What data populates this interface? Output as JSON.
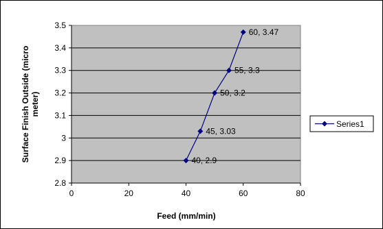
{
  "chart_data": {
    "type": "line",
    "title": "",
    "xlabel": "Feed (mm/min)",
    "ylabel_lines": [
      "Surface Finish Outside (micro",
      "meter)"
    ],
    "xlim": [
      0,
      80
    ],
    "ylim": [
      2.8,
      3.5
    ],
    "x_ticks": [
      "0",
      "20",
      "40",
      "60",
      "80"
    ],
    "y_ticks": [
      "2.8",
      "2.9",
      "3",
      "3.1",
      "3.2",
      "3.3",
      "3.4",
      "3.5"
    ],
    "grid": "horizontal",
    "legend_position": "right",
    "plot_background": "#c0c0c0",
    "series": [
      {
        "name": "Series1",
        "color": "#000080",
        "marker": "diamond",
        "x": [
          40,
          45,
          50,
          55,
          60
        ],
        "y": [
          2.9,
          3.03,
          3.2,
          3.3,
          3.47
        ],
        "labels": [
          "40, 2.9",
          "45, 3.03",
          "50, 3.2",
          "55, 3.3",
          "60, 3.47"
        ]
      }
    ]
  }
}
